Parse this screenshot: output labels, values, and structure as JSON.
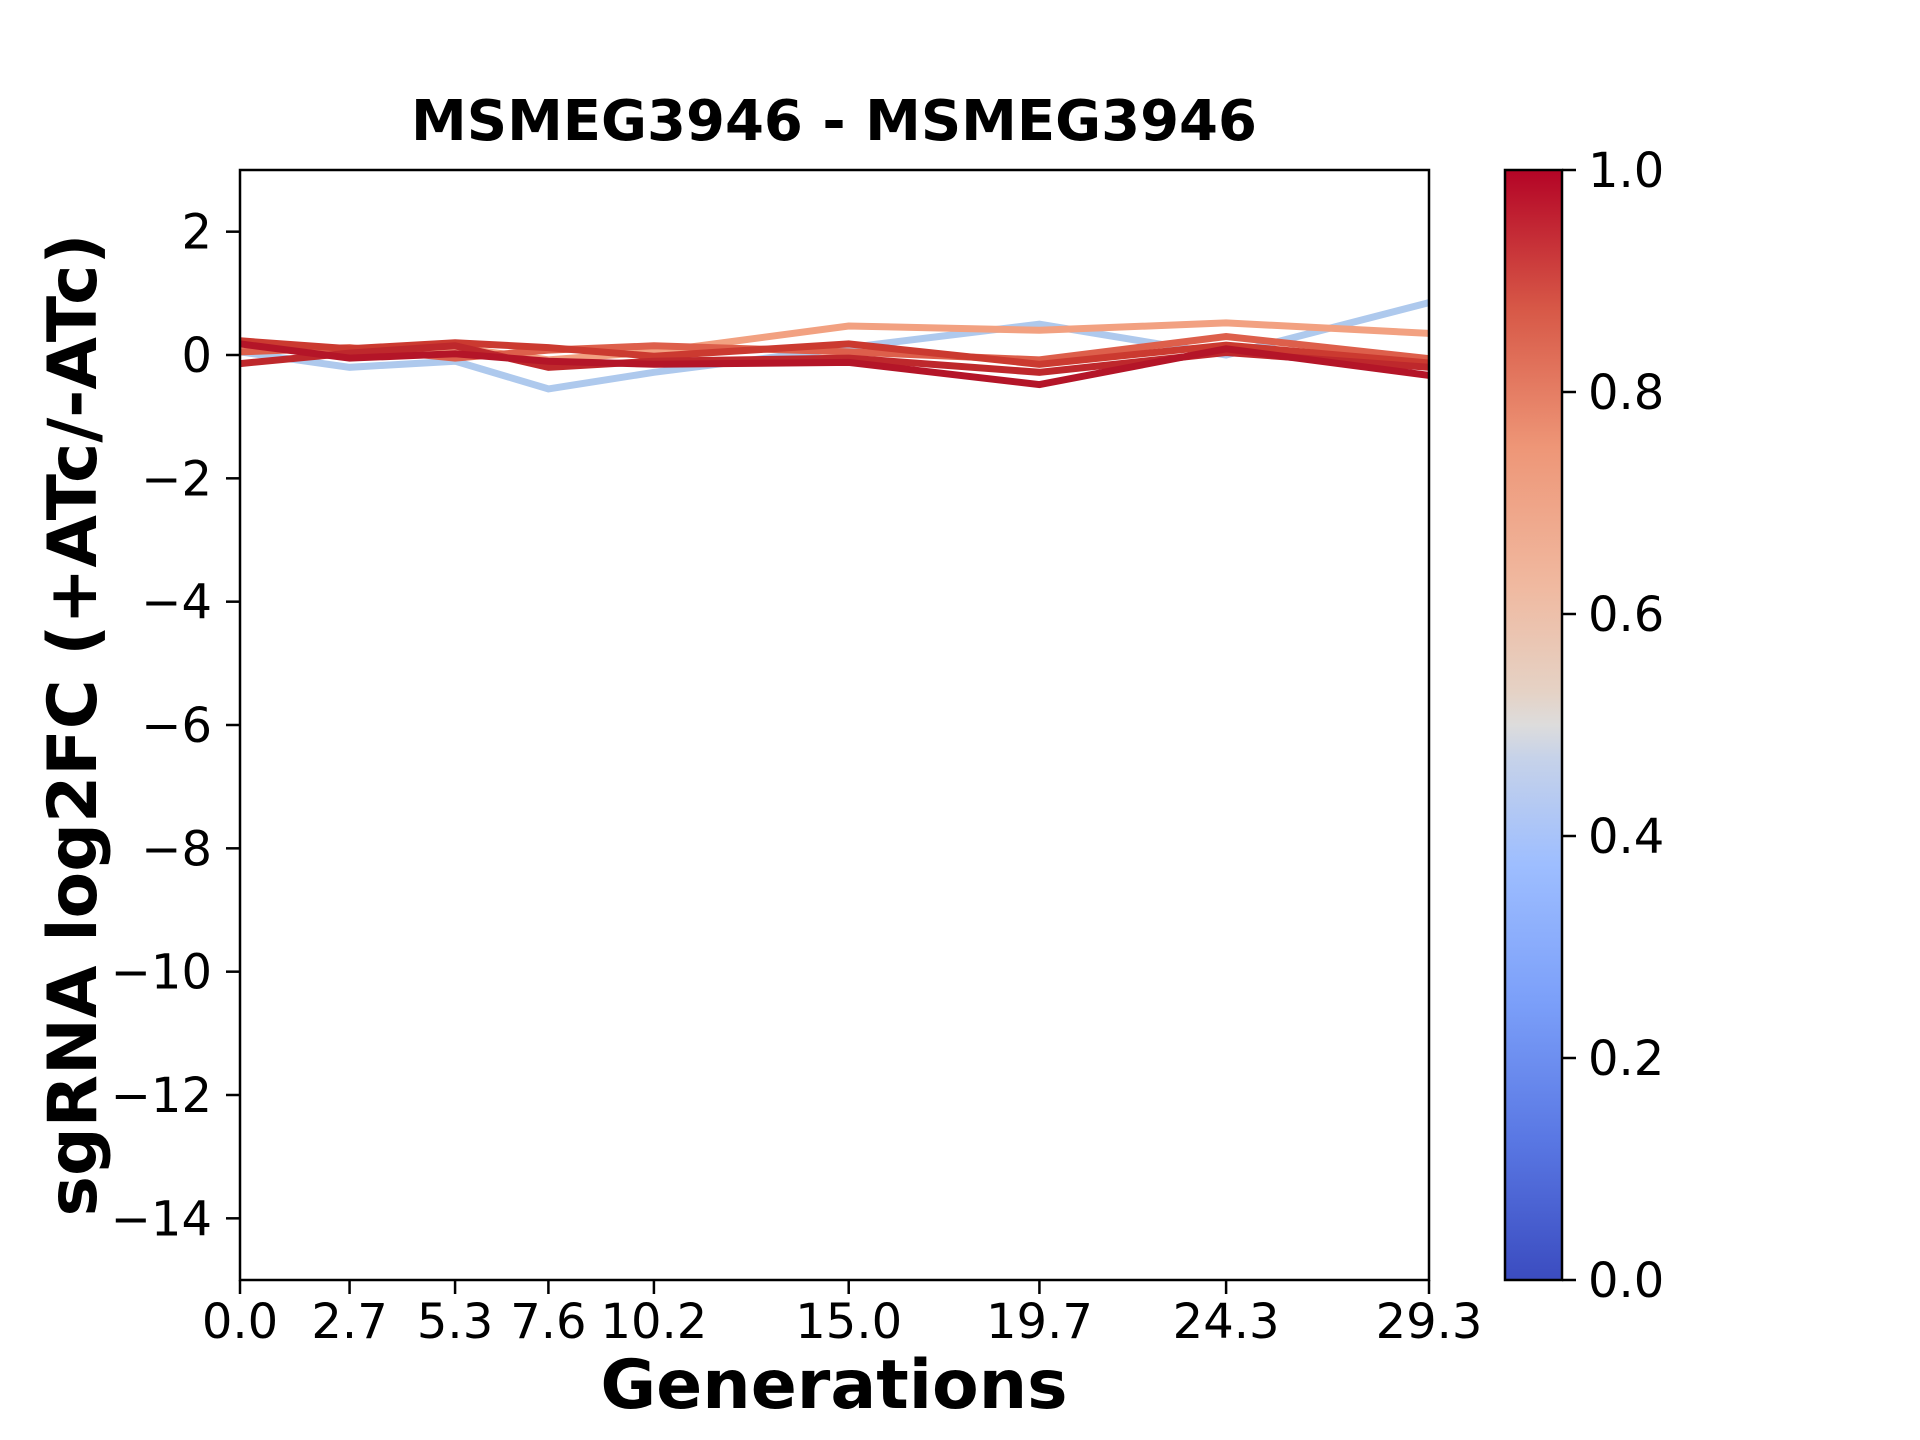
{
  "chart_data": {
    "type": "line",
    "title": "MSMEG3946 - MSMEG3946",
    "xlabel": "Generations",
    "ylabel": "sgRNA log2FC (+ATc/-ATc)",
    "xlim": [
      0.0,
      29.3
    ],
    "ylim": [
      -15.0,
      3.0
    ],
    "grid": false,
    "legend": "none",
    "x": [
      0.0,
      2.7,
      5.3,
      7.6,
      10.2,
      15.0,
      19.7,
      24.3,
      29.3
    ],
    "xtick_labels": [
      "0.0",
      "2.7",
      "5.3",
      "7.6",
      "10.2",
      "15.0",
      "19.7",
      "24.3",
      "29.3"
    ],
    "yticks": [
      2,
      0,
      -2,
      -4,
      -6,
      -8,
      -10,
      -12,
      -14
    ],
    "ytick_labels": [
      "2",
      "0",
      "−2",
      "−4",
      "−6",
      "−8",
      "−10",
      "−12",
      "−14"
    ],
    "series": [
      {
        "id": "line-1",
        "color": "#aec9ed",
        "colormap_value": 0.42,
        "values": [
          0.05,
          -0.2,
          -0.1,
          -0.55,
          -0.28,
          0.12,
          0.5,
          0.0,
          0.85
        ]
      },
      {
        "id": "line-2",
        "color": "#f2a181",
        "colormap_value": 0.7,
        "values": [
          0.1,
          0.05,
          0.12,
          -0.08,
          0.05,
          0.47,
          0.4,
          0.52,
          0.35
        ]
      },
      {
        "id": "line-3",
        "color": "#dd5f4b",
        "colormap_value": 0.82,
        "values": [
          0.05,
          0.12,
          -0.05,
          0.08,
          0.15,
          0.05,
          -0.08,
          0.3,
          -0.06
        ]
      },
      {
        "id": "line-4",
        "color": "#cb3a30",
        "colormap_value": 0.9,
        "values": [
          0.23,
          0.1,
          0.2,
          0.12,
          -0.02,
          0.18,
          -0.15,
          0.16,
          -0.13
        ]
      },
      {
        "id": "line-5",
        "color": "#be282c",
        "colormap_value": 0.95,
        "values": [
          -0.14,
          0.03,
          0.15,
          -0.2,
          -0.1,
          -0.05,
          -0.28,
          0.04,
          -0.2
        ]
      },
      {
        "id": "line-6",
        "color": "#b41528",
        "colormap_value": 1.0,
        "values": [
          0.18,
          -0.05,
          0.02,
          -0.1,
          -0.15,
          -0.12,
          -0.48,
          0.1,
          -0.33
        ]
      }
    ],
    "colorbar": {
      "min": 0.0,
      "max": 1.0,
      "colormap": "coolwarm",
      "tick_labels": [
        "1.0",
        "0.8",
        "0.6",
        "0.4",
        "0.2",
        "0.0"
      ],
      "stops": [
        {
          "offset": 0.0,
          "color": "#3b4cc0"
        },
        {
          "offset": 0.125,
          "color": "#5977e3"
        },
        {
          "offset": 0.25,
          "color": "#7b9ff9"
        },
        {
          "offset": 0.375,
          "color": "#9ebeff"
        },
        {
          "offset": 0.47,
          "color": "#c6d2e9"
        },
        {
          "offset": 0.5,
          "color": "#dddcdc"
        },
        {
          "offset": 0.53,
          "color": "#e5d2c5"
        },
        {
          "offset": 0.625,
          "color": "#f0b9a0"
        },
        {
          "offset": 0.75,
          "color": "#ee9677"
        },
        {
          "offset": 0.875,
          "color": "#d75847"
        },
        {
          "offset": 1.0,
          "color": "#b40426"
        }
      ]
    }
  }
}
